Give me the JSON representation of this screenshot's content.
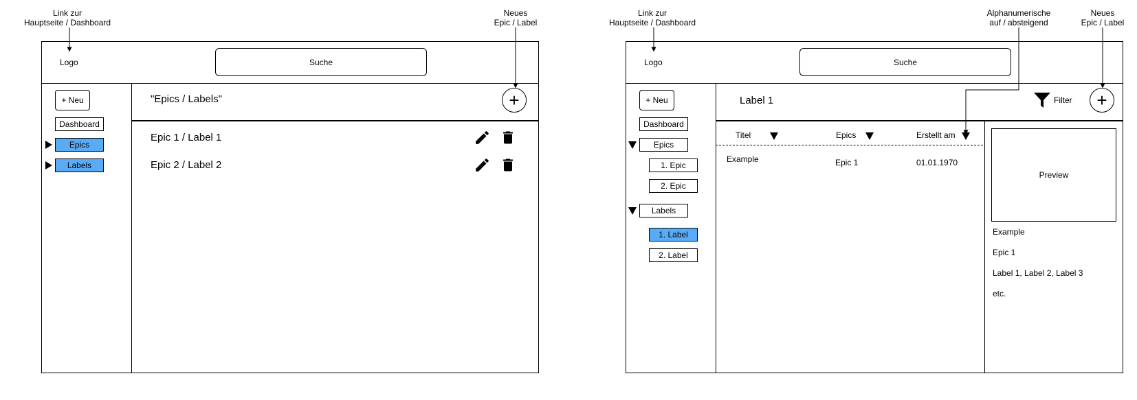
{
  "left": {
    "note_home": [
      "Link zur",
      "Hauptseite / Dashboard"
    ],
    "note_new": [
      "Neues",
      "Epic / Label"
    ],
    "logo": "Logo",
    "search": "Suche",
    "new_button": "+ Neu",
    "nav": {
      "dashboard": "Dashboard",
      "epics": "Epics",
      "labels": "Labels"
    },
    "page_title": "\"Epics / Labels\"",
    "add_symbol": "+",
    "items": [
      "Epic 1 / Label 1",
      "Epic 2 / Label 2"
    ]
  },
  "right": {
    "note_home": [
      "Link zur",
      "Hauptseite / Dashboard"
    ],
    "note_sort": [
      "Alphanumerische",
      "auf / absteigend"
    ],
    "note_new": [
      "Neues",
      "Epic / Label"
    ],
    "logo": "Logo",
    "search": "Suche",
    "new_button": "+ Neu",
    "nav": {
      "dashboard": "Dashboard",
      "epics": "Epics",
      "epic_items": [
        "1. Epic",
        "2. Epic"
      ],
      "labels": "Labels",
      "label_items": [
        "1. Label",
        "2. Label"
      ]
    },
    "page_title": "Label 1",
    "filter": "Filter",
    "add_symbol": "+",
    "columns": [
      "Titel",
      "Epics",
      "Erstellt am"
    ],
    "row": [
      "Example",
      "Epic 1",
      "01.01.1970"
    ],
    "preview": {
      "box": "Preview",
      "lines": [
        "Example",
        "Epic 1",
        "Label 1, Label 2, Label 3",
        "etc."
      ]
    }
  },
  "colors": {
    "selected": "#5aabf5",
    "line": "#000000"
  },
  "icons": [
    "pencil-icon",
    "trash-icon",
    "filter-icon",
    "triangle-right-icon",
    "triangle-down-icon"
  ]
}
